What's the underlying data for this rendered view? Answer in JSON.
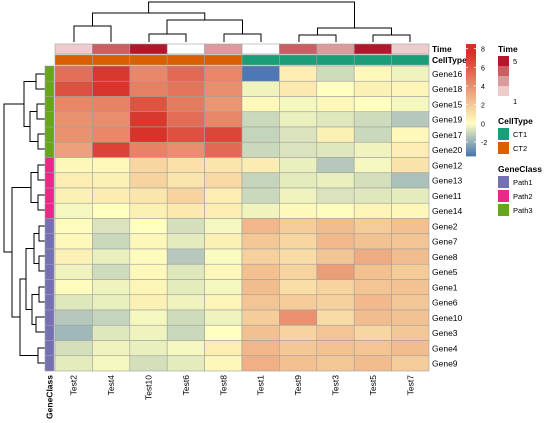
{
  "chart_data": {
    "type": "heatmap",
    "columns": [
      "Test2",
      "Test4",
      "Test10",
      "Test6",
      "Test8",
      "Test1",
      "Test9",
      "Test3",
      "Test5",
      "Test7"
    ],
    "rows": [
      "Gene16",
      "Gene18",
      "Gene15",
      "Gene19",
      "Gene17",
      "Gene20",
      "Gene12",
      "Gene13",
      "Gene11",
      "Gene14",
      "Gene2",
      "Gene7",
      "Gene8",
      "Gene5",
      "Gene1",
      "Gene6",
      "Gene10",
      "Gene3",
      "Gene4",
      "Gene9"
    ],
    "values": [
      [
        5.2,
        7.2,
        4.3,
        5.4,
        4.4,
        -3.4,
        0.6,
        -0.9,
        0.2,
        -0.3
      ],
      [
        6.3,
        7.3,
        4.6,
        5.0,
        4.1,
        -0.3,
        0.8,
        0.0,
        0.5,
        0.4
      ],
      [
        4.4,
        4.5,
        6.2,
        4.8,
        3.8,
        0.2,
        -0.2,
        0.3,
        0.0,
        -0.2
      ],
      [
        4.0,
        4.1,
        7.2,
        5.3,
        4.4,
        -1.0,
        -0.4,
        -0.6,
        -0.9,
        -1.4
      ],
      [
        4.0,
        4.3,
        7.4,
        6.3,
        6.7,
        -1.1,
        -0.7,
        0.5,
        -1.0,
        0.2
      ],
      [
        3.4,
        6.8,
        4.5,
        4.1,
        5.4,
        -1.0,
        -0.7,
        -0.6,
        -0.3,
        0.6
      ],
      [
        0.3,
        0.2,
        1.5,
        1.1,
        0.9,
        0.7,
        -0.4,
        -1.4,
        -0.2,
        1.0
      ],
      [
        0.6,
        0.5,
        1.6,
        0.9,
        1.4,
        -1.1,
        -0.5,
        -0.4,
        -0.8,
        -1.6
      ],
      [
        0.5,
        0.7,
        0.9,
        1.6,
        0.6,
        -1.0,
        -0.3,
        -0.7,
        -0.6,
        -0.5
      ],
      [
        -0.2,
        0.0,
        0.5,
        0.8,
        0.6,
        -0.3,
        0.2,
        0.1,
        0.4,
        0.3
      ],
      [
        0.1,
        -0.7,
        0.0,
        -0.8,
        -0.2,
        2.6,
        1.8,
        2.4,
        1.9,
        2.3
      ],
      [
        0.2,
        -1.0,
        0.3,
        -0.5,
        0.5,
        2.0,
        1.5,
        2.5,
        2.2,
        2.1
      ],
      [
        0.5,
        -0.4,
        0.1,
        -1.4,
        -0.1,
        1.7,
        1.3,
        2.1,
        3.0,
        2.4
      ],
      [
        -0.3,
        -0.9,
        0.2,
        -0.6,
        0.3,
        2.3,
        1.6,
        3.6,
        2.3,
        1.9
      ],
      [
        0.1,
        -0.3,
        0.4,
        -0.5,
        -0.2,
        2.4,
        1.2,
        1.6,
        2.1,
        2.2
      ],
      [
        -0.6,
        -0.4,
        0.5,
        -0.3,
        0.4,
        2.1,
        1.9,
        1.7,
        2.5,
        2.0
      ],
      [
        -1.4,
        -1.1,
        -0.2,
        -0.9,
        -0.3,
        1.8,
        4.0,
        1.3,
        2.4,
        2.2
      ],
      [
        -1.8,
        -0.6,
        -0.3,
        -1.0,
        0.0,
        2.3,
        1.6,
        2.1,
        1.5,
        2.0
      ],
      [
        -0.8,
        -0.3,
        -0.4,
        -0.2,
        0.6,
        2.6,
        2.0,
        2.2,
        2.1,
        2.4
      ],
      [
        -0.5,
        -0.2,
        -0.8,
        -0.5,
        0.3,
        2.9,
        2.3,
        2.0,
        2.4,
        1.8
      ]
    ],
    "color_scale": {
      "breaks": [
        -3.5,
        0,
        7.5
      ],
      "colors": [
        "#4575b4",
        "#ffffbf",
        "#d73027"
      ],
      "ticks": [
        "-2",
        "0",
        "2",
        "4",
        "6",
        "8"
      ],
      "range": [
        -3.5,
        8.5
      ]
    },
    "col_annotations": {
      "Time": [
        2,
        4,
        5,
        1,
        3,
        1,
        4,
        3,
        5,
        2
      ],
      "CellType": [
        "CT2",
        "CT2",
        "CT2",
        "CT2",
        "CT2",
        "CT1",
        "CT1",
        "CT1",
        "CT1",
        "CT1"
      ]
    },
    "col_annotation_labels": [
      "Time",
      "CellType"
    ],
    "row_annotation_label": "GeneClass",
    "row_annotations": [
      "Path3",
      "Path3",
      "Path3",
      "Path3",
      "Path3",
      "Path3",
      "Path2",
      "Path2",
      "Path2",
      "Path2",
      "Path1",
      "Path1",
      "Path1",
      "Path1",
      "Path1",
      "Path1",
      "Path1",
      "Path1",
      "Path1",
      "Path1"
    ],
    "legends": {
      "Time": {
        "title": "Time",
        "labels": [
          "5",
          "1"
        ],
        "colors": [
          "#b2182b",
          "#c95e63",
          "#dc9a9c",
          "#eccccd",
          "#ffffff"
        ]
      },
      "CellType": {
        "title": "CellType",
        "labels": [
          "CT1",
          "CT2"
        ],
        "colors": [
          "#1b9e77",
          "#d95f02"
        ]
      },
      "GeneClass": {
        "title": "GeneClass",
        "labels": [
          "Path1",
          "Path2",
          "Path3"
        ],
        "colors": [
          "#7570b3",
          "#e7298a",
          "#66a61e"
        ]
      }
    }
  }
}
